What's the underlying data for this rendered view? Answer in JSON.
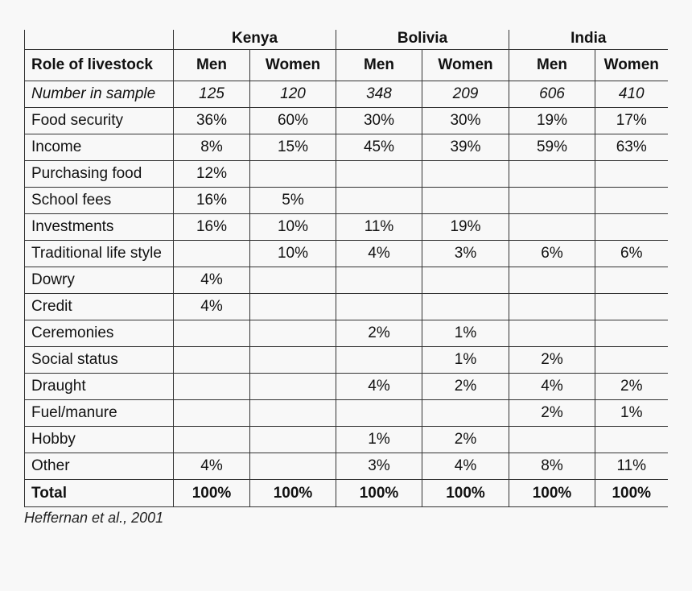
{
  "table": {
    "countries": [
      "Kenya",
      "Bolivia",
      "India"
    ],
    "header": {
      "label": "Role of livestock",
      "columns": [
        "Men",
        "Women",
        "Men",
        "Women",
        "Men",
        "Women"
      ]
    },
    "sample": {
      "label": "Number in sample",
      "values": [
        "125",
        "120",
        "348",
        "209",
        "606",
        "410"
      ]
    },
    "rows": [
      {
        "label": "Food security",
        "values": [
          "36%",
          "60%",
          "30%",
          "30%",
          "19%",
          "17%"
        ]
      },
      {
        "label": "Income",
        "values": [
          "8%",
          "15%",
          "45%",
          "39%",
          "59%",
          "63%"
        ]
      },
      {
        "label": "Purchasing food",
        "values": [
          "12%",
          "",
          "",
          "",
          "",
          ""
        ]
      },
      {
        "label": "School fees",
        "values": [
          "16%",
          "5%",
          "",
          "",
          "",
          ""
        ]
      },
      {
        "label": "Investments",
        "values": [
          "16%",
          "10%",
          "11%",
          "19%",
          "",
          ""
        ]
      },
      {
        "label": "Traditional life style",
        "values": [
          "",
          "10%",
          "4%",
          "3%",
          "6%",
          "6%"
        ]
      },
      {
        "label": "Dowry",
        "values": [
          "4%",
          "",
          "",
          "",
          "",
          ""
        ]
      },
      {
        "label": "Credit",
        "values": [
          "4%",
          "",
          "",
          "",
          "",
          ""
        ]
      },
      {
        "label": "Ceremonies",
        "values": [
          "",
          "",
          "2%",
          "1%",
          "",
          ""
        ]
      },
      {
        "label": "Social status",
        "values": [
          "",
          "",
          "",
          "1%",
          "2%",
          ""
        ]
      },
      {
        "label": "Draught",
        "values": [
          "",
          "",
          "4%",
          "2%",
          "4%",
          "2%"
        ]
      },
      {
        "label": "Fuel/manure",
        "values": [
          "",
          "",
          "",
          "",
          "2%",
          "1%"
        ]
      },
      {
        "label": "Hobby",
        "values": [
          "",
          "",
          "1%",
          "2%",
          "",
          ""
        ]
      },
      {
        "label": "Other",
        "values": [
          "4%",
          "",
          "3%",
          "4%",
          "8%",
          "11%"
        ]
      }
    ],
    "total": {
      "label": "Total",
      "values": [
        "100%",
        "100%",
        "100%",
        "100%",
        "100%",
        "100%"
      ]
    }
  },
  "caption": "Heffernan et al., 2001"
}
